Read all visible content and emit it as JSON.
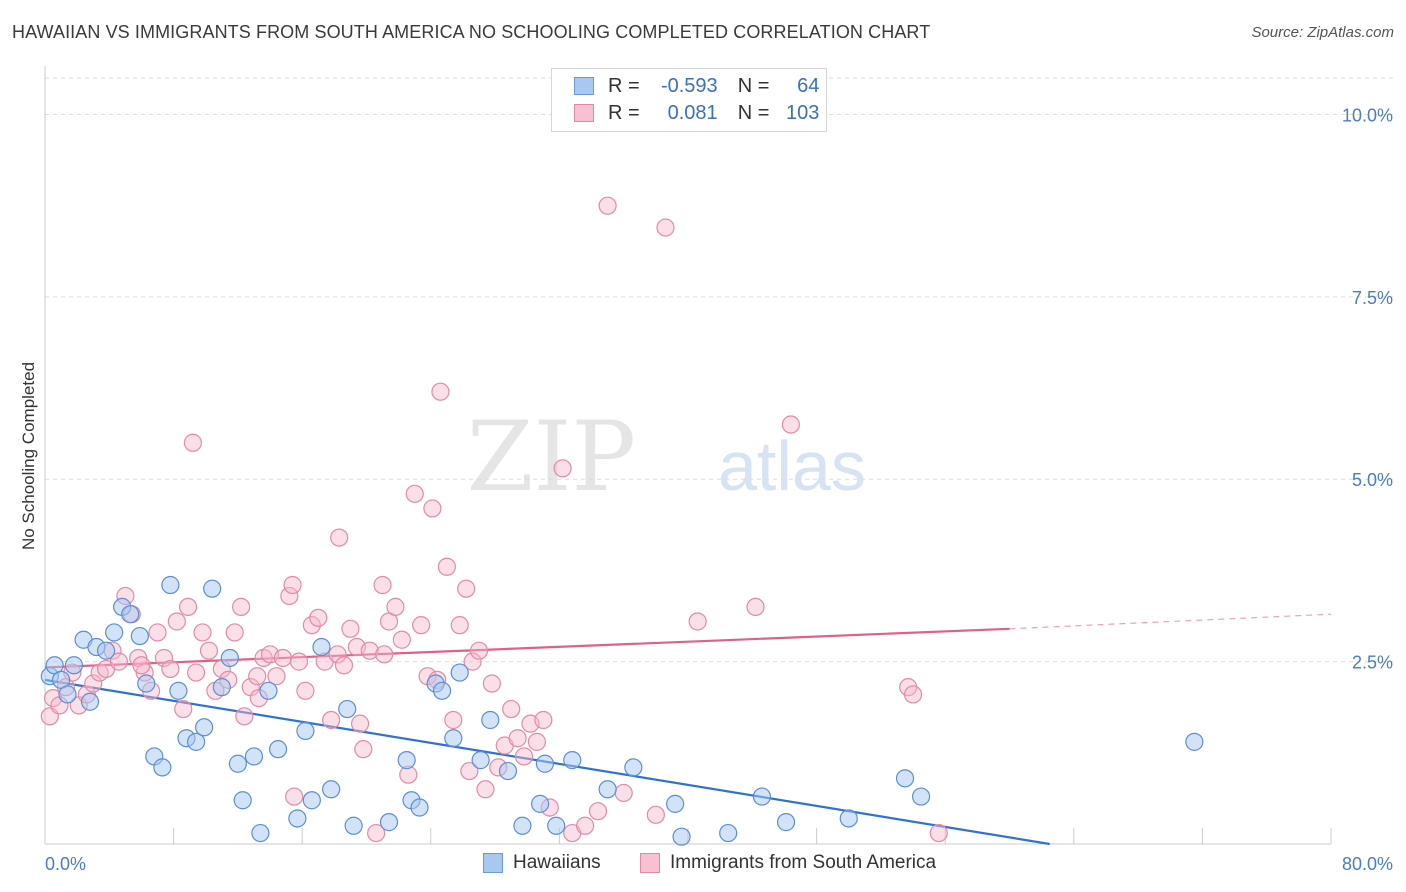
{
  "title": "HAWAIIAN VS IMMIGRANTS FROM SOUTH AMERICA NO SCHOOLING COMPLETED CORRELATION CHART",
  "source": "Source: ZipAtlas.com",
  "watermark": {
    "zip": "ZIP",
    "atlas": "atlas"
  },
  "legend": {
    "rows": [
      {
        "r_label": "R =",
        "r_value": "-0.593",
        "n_label": "N =",
        "n_value": "64",
        "color": "#a8c8f0",
        "border": "#6a9ad8"
      },
      {
        "r_label": "R =",
        "r_value": "0.081",
        "n_label": "N =",
        "n_value": "103",
        "color": "#f8c0d0",
        "border": "#e08aa4"
      }
    ]
  },
  "bottom_legend": [
    {
      "label": "Hawaiians",
      "color": "#a8c8f0",
      "border": "#6a9ad8"
    },
    {
      "label": "Immigrants from South America",
      "color": "#f8c0d0",
      "border": "#e08aa4"
    }
  ],
  "colors": {
    "blue_fill": "#a8c8f0",
    "blue_stroke": "#5b8fd6",
    "blue_line": "#2f72d0",
    "pink_fill": "#f6b9cb",
    "pink_stroke": "#e58aa6",
    "pink_line": "#e0608a",
    "tick_label": "#4a7cc8",
    "grid": "#dddddd"
  },
  "chart_data": {
    "type": "scatter",
    "title": "HAWAIIAN VS IMMIGRANTS FROM SOUTH AMERICA NO SCHOOLING COMPLETED CORRELATION CHART",
    "xlabel": "",
    "ylabel": "No Schooling Completed",
    "xlim": [
      0,
      80
    ],
    "ylim": [
      0,
      10.5
    ],
    "x_tick_labels": [
      "0.0%",
      "80.0%"
    ],
    "y_ticks": [
      2.5,
      5.0,
      7.5,
      10.0
    ],
    "y_tick_labels": [
      "2.5%",
      "5.0%",
      "7.5%",
      "10.0%"
    ],
    "grid": true,
    "legend_position": "top-center",
    "series": [
      {
        "name": "Hawaiians",
        "points": [
          [
            0.3,
            2.3
          ],
          [
            0.6,
            2.45
          ],
          [
            1.0,
            2.25
          ],
          [
            1.4,
            2.05
          ],
          [
            1.8,
            2.45
          ],
          [
            2.4,
            2.8
          ],
          [
            2.8,
            1.95
          ],
          [
            3.2,
            2.7
          ],
          [
            3.8,
            2.65
          ],
          [
            4.3,
            2.9
          ],
          [
            4.8,
            3.25
          ],
          [
            5.3,
            3.15
          ],
          [
            5.9,
            2.85
          ],
          [
            6.3,
            2.2
          ],
          [
            6.8,
            1.2
          ],
          [
            7.3,
            1.05
          ],
          [
            7.8,
            3.55
          ],
          [
            8.3,
            2.1
          ],
          [
            8.8,
            1.45
          ],
          [
            9.4,
            1.4
          ],
          [
            9.9,
            1.6
          ],
          [
            10.4,
            3.5
          ],
          [
            11.0,
            2.15
          ],
          [
            11.5,
            2.55
          ],
          [
            12.0,
            1.1
          ],
          [
            12.3,
            0.6
          ],
          [
            13.0,
            1.2
          ],
          [
            13.4,
            0.15
          ],
          [
            13.9,
            2.1
          ],
          [
            14.5,
            1.3
          ],
          [
            15.7,
            0.35
          ],
          [
            16.2,
            1.55
          ],
          [
            16.6,
            0.6
          ],
          [
            17.2,
            2.7
          ],
          [
            17.8,
            0.75
          ],
          [
            18.8,
            1.85
          ],
          [
            19.2,
            0.25
          ],
          [
            21.4,
            0.3
          ],
          [
            22.5,
            1.15
          ],
          [
            22.8,
            0.6
          ],
          [
            23.3,
            0.5
          ],
          [
            24.3,
            2.2
          ],
          [
            24.7,
            2.1
          ],
          [
            25.4,
            1.45
          ],
          [
            25.8,
            2.35
          ],
          [
            27.1,
            1.15
          ],
          [
            27.7,
            1.7
          ],
          [
            28.8,
            1.0
          ],
          [
            29.7,
            0.25
          ],
          [
            30.8,
            0.55
          ],
          [
            31.1,
            1.1
          ],
          [
            31.8,
            0.25
          ],
          [
            32.8,
            1.15
          ],
          [
            35.0,
            0.75
          ],
          [
            36.6,
            1.05
          ],
          [
            39.2,
            0.55
          ],
          [
            39.6,
            0.1
          ],
          [
            42.5,
            0.15
          ],
          [
            44.6,
            0.65
          ],
          [
            46.1,
            0.3
          ],
          [
            50.0,
            0.35
          ],
          [
            53.5,
            0.9
          ],
          [
            54.5,
            0.65
          ],
          [
            71.5,
            1.4
          ]
        ],
        "trend": {
          "x": [
            0,
            62.5
          ],
          "y": [
            2.25,
            0.0
          ]
        }
      },
      {
        "name": "Immigrants from South America",
        "points": [
          [
            0.3,
            1.75
          ],
          [
            0.5,
            2.0
          ],
          [
            0.9,
            1.9
          ],
          [
            1.3,
            2.15
          ],
          [
            1.7,
            2.35
          ],
          [
            2.1,
            1.9
          ],
          [
            2.6,
            2.05
          ],
          [
            3.0,
            2.2
          ],
          [
            3.4,
            2.35
          ],
          [
            3.8,
            2.4
          ],
          [
            4.2,
            2.65
          ],
          [
            4.6,
            2.5
          ],
          [
            5.0,
            3.4
          ],
          [
            5.4,
            3.15
          ],
          [
            5.8,
            2.55
          ],
          [
            6.2,
            2.35
          ],
          [
            6.6,
            2.1
          ],
          [
            7.0,
            2.9
          ],
          [
            7.4,
            2.55
          ],
          [
            7.8,
            2.4
          ],
          [
            8.2,
            3.05
          ],
          [
            8.6,
            1.85
          ],
          [
            8.9,
            3.25
          ],
          [
            9.4,
            2.35
          ],
          [
            9.8,
            2.9
          ],
          [
            9.2,
            5.5
          ],
          [
            10.2,
            2.65
          ],
          [
            10.6,
            2.1
          ],
          [
            11.0,
            2.4
          ],
          [
            11.4,
            2.25
          ],
          [
            11.8,
            2.9
          ],
          [
            12.2,
            3.25
          ],
          [
            12.4,
            1.75
          ],
          [
            12.8,
            2.15
          ],
          [
            13.2,
            2.3
          ],
          [
            13.6,
            2.55
          ],
          [
            14.0,
            2.6
          ],
          [
            14.4,
            2.3
          ],
          [
            14.8,
            2.55
          ],
          [
            15.2,
            3.4
          ],
          [
            15.4,
            3.55
          ],
          [
            15.8,
            2.5
          ],
          [
            16.2,
            2.1
          ],
          [
            16.6,
            3.0
          ],
          [
            17.0,
            3.1
          ],
          [
            17.4,
            2.5
          ],
          [
            17.8,
            1.7
          ],
          [
            18.2,
            2.6
          ],
          [
            18.6,
            2.45
          ],
          [
            19.0,
            2.95
          ],
          [
            19.4,
            2.7
          ],
          [
            19.8,
            1.3
          ],
          [
            20.2,
            2.65
          ],
          [
            20.6,
            0.15
          ],
          [
            21.0,
            3.55
          ],
          [
            21.4,
            3.05
          ],
          [
            21.8,
            3.25
          ],
          [
            22.2,
            2.8
          ],
          [
            22.6,
            0.95
          ],
          [
            23.0,
            4.8
          ],
          [
            23.4,
            3.0
          ],
          [
            23.8,
            2.3
          ],
          [
            24.1,
            4.6
          ],
          [
            24.6,
            6.2
          ],
          [
            25.0,
            3.8
          ],
          [
            25.4,
            1.7
          ],
          [
            25.8,
            3.0
          ],
          [
            26.2,
            3.5
          ],
          [
            26.6,
            2.5
          ],
          [
            27.0,
            2.65
          ],
          [
            27.4,
            0.75
          ],
          [
            27.8,
            2.2
          ],
          [
            28.2,
            1.05
          ],
          [
            28.6,
            1.35
          ],
          [
            29.0,
            1.85
          ],
          [
            29.4,
            1.45
          ],
          [
            29.8,
            1.2
          ],
          [
            30.2,
            1.65
          ],
          [
            30.6,
            1.4
          ],
          [
            31.4,
            0.5
          ],
          [
            32.2,
            5.15
          ],
          [
            32.8,
            0.15
          ],
          [
            33.6,
            0.25
          ],
          [
            34.4,
            0.45
          ],
          [
            35.0,
            8.75
          ],
          [
            36.0,
            0.7
          ],
          [
            38.0,
            0.4
          ],
          [
            38.6,
            8.45
          ],
          [
            40.6,
            3.05
          ],
          [
            44.2,
            3.25
          ],
          [
            46.4,
            5.75
          ],
          [
            53.7,
            2.15
          ],
          [
            54.0,
            2.05
          ],
          [
            55.6,
            0.15
          ],
          [
            18.3,
            4.2
          ],
          [
            15.5,
            0.65
          ],
          [
            19.6,
            1.65
          ],
          [
            31.0,
            1.7
          ],
          [
            24.4,
            2.25
          ],
          [
            13.3,
            2.0
          ],
          [
            6.0,
            2.45
          ],
          [
            26.4,
            1.0
          ],
          [
            21.1,
            2.6
          ]
        ],
        "trend": {
          "x": [
            0,
            60
          ],
          "y": [
            2.42,
            2.95
          ]
        },
        "trend_dashed": {
          "x": [
            60,
            80
          ],
          "y": [
            2.95,
            3.15
          ]
        }
      }
    ]
  }
}
